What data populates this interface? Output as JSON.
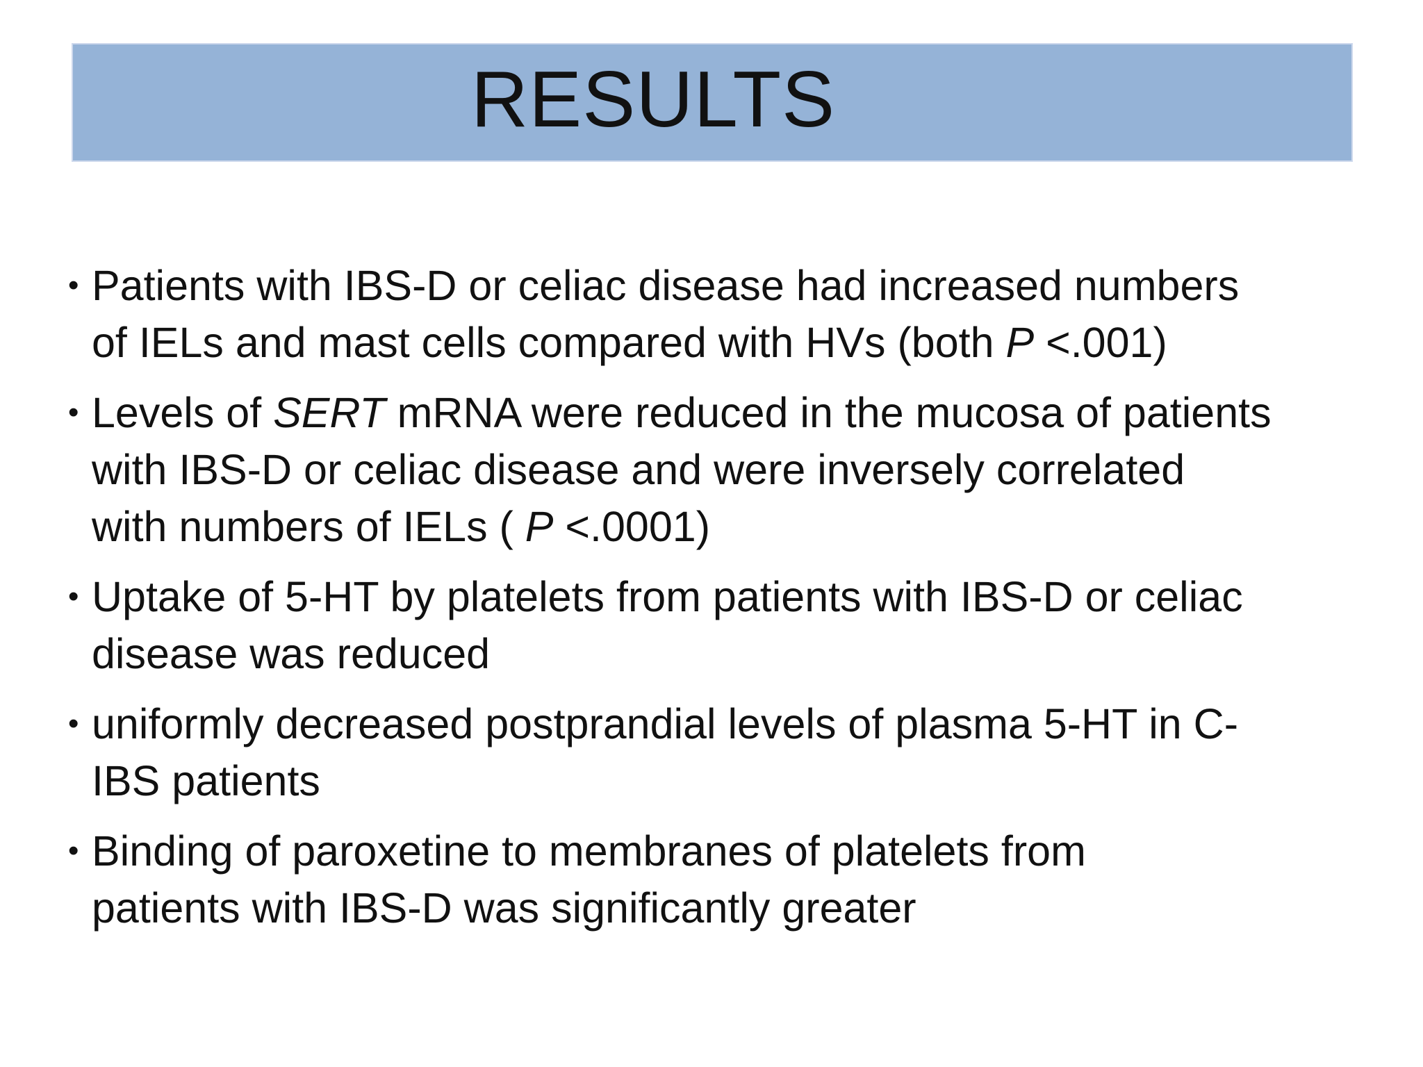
{
  "slide": {
    "title": "RESULTS",
    "bullet_glyph": "•",
    "colors": {
      "background": "#FFFFFF",
      "title_bar_bg": "#95B3D7",
      "title_bar_border": "#CDD8EC",
      "text": "#111111"
    },
    "bullets": [
      {
        "lines": [
          [
            {
              "t": "Patients with IBS-D or celiac disease had increased numbers"
            }
          ],
          [
            {
              "t": "of IELs and mast cells compared with HVs (both "
            },
            {
              "t": "P",
              "italic": true
            },
            {
              "t": " <.001)"
            }
          ]
        ]
      },
      {
        "lines": [
          [
            {
              "t": "Levels of "
            },
            {
              "t": "SERT",
              "italic": true
            },
            {
              "t": " mRNA were reduced in the mucosa of patients"
            }
          ],
          [
            {
              "t": "with IBS-D or celiac disease and were inversely correlated"
            }
          ],
          [
            {
              "t": "with numbers of IELs ( "
            },
            {
              "t": "P",
              "italic": true
            },
            {
              "t": " <.0001)"
            }
          ]
        ]
      },
      {
        "lines": [
          [
            {
              "t": "Uptake of 5-HT by platelets from patients with IBS-D or celiac"
            }
          ],
          [
            {
              "t": "disease was reduced"
            }
          ]
        ]
      },
      {
        "lines": [
          [
            {
              "t": "uniformly decreased postprandial levels of plasma 5-HT in C-"
            }
          ],
          [
            {
              "t": "IBS patients"
            }
          ]
        ]
      },
      {
        "lines": [
          [
            {
              "t": "Binding of paroxetine to membranes of platelets from"
            }
          ],
          [
            {
              "t": "patients with IBS-D was significantly greater"
            }
          ]
        ]
      }
    ]
  }
}
